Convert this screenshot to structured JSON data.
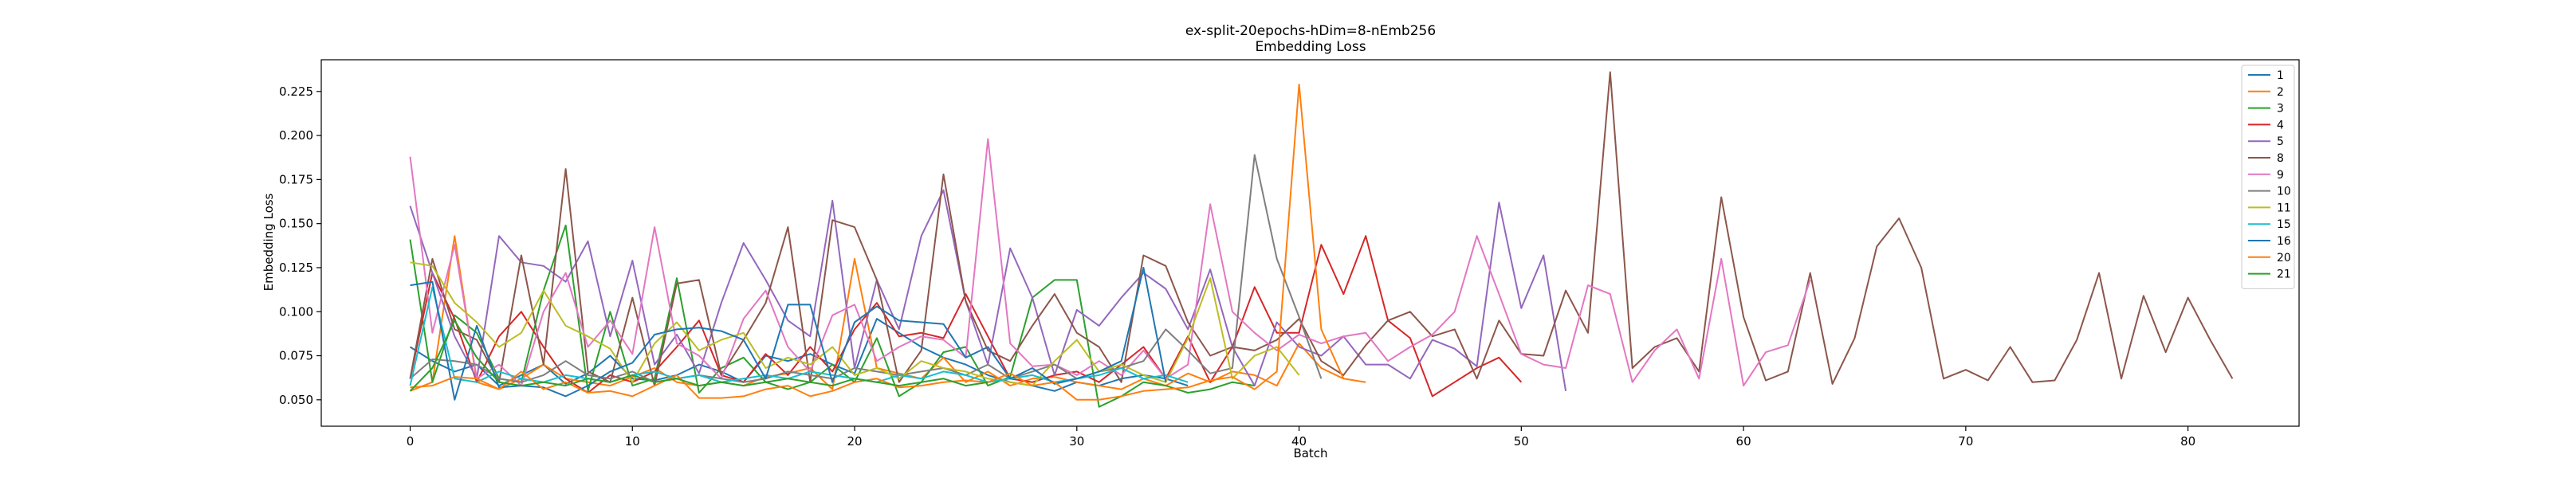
{
  "chart_data": {
    "type": "line",
    "title": "ex-split-20epochs-hDim=8-nEmb256",
    "subtitle": "Embedding Loss",
    "xlabel": "Batch",
    "ylabel": "Embedding Loss",
    "xlim": [
      -4,
      85
    ],
    "ylim": [
      0.035,
      0.243
    ],
    "xticks": [
      0,
      10,
      20,
      30,
      40,
      50,
      60,
      70,
      80
    ],
    "yticks": [
      0.05,
      0.075,
      0.1,
      0.125,
      0.15,
      0.175,
      0.2,
      0.225
    ],
    "ytick_labels": [
      "0.050",
      "0.075",
      "0.100",
      "0.125",
      "0.150",
      "0.175",
      "0.200",
      "0.225"
    ],
    "grid": false,
    "legend_position": "top-right",
    "series": [
      {
        "name": "1",
        "color": "#1f77b4",
        "values": [
          0.08,
          0.072,
          0.066,
          0.07,
          0.058,
          0.064,
          0.07,
          0.059,
          0.065,
          0.075,
          0.062,
          0.061,
          0.064,
          0.07,
          0.066,
          0.06,
          0.075,
          0.072,
          0.076,
          0.07,
          0.065,
          0.096,
          0.088,
          0.08,
          0.074,
          0.07,
          0.064,
          0.06,
          0.058,
          0.055,
          0.06,
          0.058,
          0.062,
          0.064,
          0.062,
          0.058
        ]
      },
      {
        "name": "2",
        "color": "#ff7f0e",
        "values": [
          0.055,
          0.06,
          0.143,
          0.06,
          0.056,
          0.062,
          0.07,
          0.062,
          0.06,
          0.058,
          0.063,
          0.068,
          0.06,
          0.058,
          0.06,
          0.058,
          0.063,
          0.065,
          0.068,
          0.056,
          0.13,
          0.068,
          0.065,
          0.062,
          0.074,
          0.06,
          0.066,
          0.058,
          0.062,
          0.063,
          0.06,
          0.058,
          0.056,
          0.062,
          0.058,
          0.065,
          0.06,
          0.066,
          0.064,
          0.058,
          0.082,
          0.068,
          0.062,
          0.06
        ]
      },
      {
        "name": "3",
        "color": "#2ca02c",
        "values": [
          0.141,
          0.06,
          0.098,
          0.088,
          0.062,
          0.06,
          0.112,
          0.149,
          0.055,
          0.1,
          0.058,
          0.062,
          0.119,
          0.054,
          0.068,
          0.074,
          0.06,
          0.056,
          0.06,
          0.07,
          0.06,
          0.085,
          0.052,
          0.06,
          0.077,
          0.08,
          0.058,
          0.063,
          0.108,
          0.118,
          0.118,
          0.046,
          0.052,
          0.06,
          0.058,
          0.054,
          0.056,
          0.06,
          0.058
        ]
      },
      {
        "name": "4",
        "color": "#d62728",
        "values": [
          0.062,
          0.122,
          0.096,
          0.06,
          0.086,
          0.1,
          0.08,
          0.062,
          0.054,
          0.064,
          0.06,
          0.066,
          0.08,
          0.095,
          0.064,
          0.06,
          0.076,
          0.064,
          0.08,
          0.066,
          0.09,
          0.105,
          0.086,
          0.088,
          0.085,
          0.11,
          0.086,
          0.062,
          0.06,
          0.064,
          0.066,
          0.06,
          0.07,
          0.08,
          0.062,
          0.086,
          0.06,
          0.08,
          0.114,
          0.088,
          0.088,
          0.138,
          0.11,
          0.143,
          0.095,
          0.085,
          0.052,
          0.06,
          0.068,
          0.074,
          0.06
        ]
      },
      {
        "name": "5",
        "color": "#9467bd",
        "values": [
          0.16,
          0.122,
          0.086,
          0.062,
          0.143,
          0.128,
          0.126,
          0.117,
          0.14,
          0.086,
          0.129,
          0.07,
          0.087,
          0.065,
          0.105,
          0.139,
          0.118,
          0.095,
          0.086,
          0.163,
          0.068,
          0.118,
          0.09,
          0.143,
          0.169,
          0.106,
          0.07,
          0.136,
          0.108,
          0.064,
          0.101,
          0.092,
          0.108,
          0.122,
          0.113,
          0.09,
          0.124,
          0.08,
          0.058,
          0.094,
          0.08,
          0.075,
          0.086,
          0.07,
          0.07,
          0.062,
          0.084,
          0.079,
          0.069,
          0.162,
          0.102,
          0.132,
          0.055
        ]
      },
      {
        "name": "8",
        "color": "#8c564b",
        "values": [
          0.062,
          0.13,
          0.09,
          0.084,
          0.06,
          0.132,
          0.07,
          0.181,
          0.066,
          0.06,
          0.108,
          0.058,
          0.116,
          0.118,
          0.064,
          0.084,
          0.105,
          0.148,
          0.06,
          0.152,
          0.148,
          0.118,
          0.06,
          0.078,
          0.178,
          0.106,
          0.078,
          0.072,
          0.092,
          0.11,
          0.088,
          0.08,
          0.06,
          0.132,
          0.126,
          0.094,
          0.075,
          0.08,
          0.078,
          0.084,
          0.096,
          0.072,
          0.064,
          0.081,
          0.095,
          0.1,
          0.086,
          0.09,
          0.062,
          0.095,
          0.076,
          0.075,
          0.112,
          0.088,
          0.236,
          0.068,
          0.08,
          0.085,
          0.066,
          0.165,
          0.097,
          0.061,
          0.066,
          0.122,
          0.059,
          0.085,
          0.137,
          0.153,
          0.125,
          0.062,
          0.067,
          0.061,
          0.08,
          0.06,
          0.061,
          0.084,
          0.122,
          0.062,
          0.109,
          0.077,
          0.108,
          0.084,
          0.062
        ]
      },
      {
        "name": "9",
        "color": "#e377c2",
        "values": [
          0.188,
          0.088,
          0.138,
          0.062,
          0.07,
          0.058,
          0.1,
          0.122,
          0.08,
          0.095,
          0.076,
          0.148,
          0.082,
          0.075,
          0.062,
          0.096,
          0.112,
          0.08,
          0.066,
          0.098,
          0.104,
          0.072,
          0.08,
          0.086,
          0.084,
          0.074,
          0.198,
          0.082,
          0.069,
          0.07,
          0.064,
          0.072,
          0.064,
          0.078,
          0.062,
          0.07,
          0.161,
          0.1,
          0.088,
          0.078,
          0.087,
          0.082,
          0.086,
          0.088,
          0.072,
          0.08,
          0.087,
          0.1,
          0.143,
          0.11,
          0.076,
          0.07,
          0.068,
          0.115,
          0.11,
          0.06,
          0.078,
          0.09,
          0.062,
          0.13,
          0.058,
          0.077,
          0.081,
          0.118
        ]
      },
      {
        "name": "10",
        "color": "#7f7f7f",
        "values": [
          0.062,
          0.073,
          0.072,
          0.07,
          0.062,
          0.06,
          0.064,
          0.072,
          0.064,
          0.062,
          0.066,
          0.06,
          0.062,
          0.064,
          0.062,
          0.06,
          0.062,
          0.066,
          0.064,
          0.062,
          0.068,
          0.066,
          0.064,
          0.066,
          0.068,
          0.064,
          0.07,
          0.062,
          0.066,
          0.07,
          0.062,
          0.066,
          0.068,
          0.072,
          0.09,
          0.078,
          0.065,
          0.068,
          0.189,
          0.13,
          0.097,
          0.062
        ]
      },
      {
        "name": "11",
        "color": "#bcbd22",
        "values": [
          0.128,
          0.126,
          0.105,
          0.094,
          0.08,
          0.088,
          0.112,
          0.092,
          0.086,
          0.079,
          0.06,
          0.082,
          0.094,
          0.078,
          0.084,
          0.088,
          0.068,
          0.074,
          0.07,
          0.08,
          0.064,
          0.068,
          0.062,
          0.072,
          0.068,
          0.066,
          0.062,
          0.06,
          0.058,
          0.072,
          0.084,
          0.066,
          0.07,
          0.064,
          0.06,
          0.085,
          0.119,
          0.062,
          0.075,
          0.08,
          0.064
        ]
      },
      {
        "name": "15",
        "color": "#17becf",
        "values": [
          0.058,
          0.114,
          0.062,
          0.06,
          0.066,
          0.062,
          0.06,
          0.064,
          0.062,
          0.06,
          0.064,
          0.066,
          0.062,
          0.064,
          0.06,
          0.062,
          0.064,
          0.062,
          0.066,
          0.064,
          0.062,
          0.06,
          0.064,
          0.062,
          0.066,
          0.064,
          0.06,
          0.062,
          0.064,
          0.06,
          0.062,
          0.064,
          0.068,
          0.062,
          0.064,
          0.06
        ]
      },
      {
        "name": "16",
        "color": "#1f77b4",
        "values": [
          0.115,
          0.117,
          0.05,
          0.092,
          0.057,
          0.058,
          0.057,
          0.052,
          0.058,
          0.066,
          0.071,
          0.087,
          0.09,
          0.091,
          0.089,
          0.084,
          0.062,
          0.104,
          0.104,
          0.06,
          0.094,
          0.103,
          0.095,
          0.094,
          0.093,
          0.074,
          0.08,
          0.062,
          0.068,
          0.059,
          0.062,
          0.066,
          0.072,
          0.125,
          0.06
        ]
      },
      {
        "name": "20",
        "color": "#ff7f0e",
        "values": [
          0.057,
          0.058,
          0.063,
          0.062,
          0.056,
          0.066,
          0.056,
          0.06,
          0.054,
          0.055,
          0.052,
          0.058,
          0.064,
          0.051,
          0.051,
          0.052,
          0.056,
          0.058,
          0.052,
          0.055,
          0.06,
          0.062,
          0.057,
          0.058,
          0.06,
          0.061,
          0.06,
          0.065,
          0.058,
          0.06,
          0.05,
          0.05,
          0.052,
          0.055,
          0.056,
          0.057,
          0.061,
          0.063,
          0.056,
          0.066,
          0.229,
          0.09,
          0.062
        ]
      },
      {
        "name": "21",
        "color": "#2ca02c",
        "values": [
          0.055,
          0.068,
          0.095,
          0.074,
          0.06,
          0.058,
          0.06,
          0.058,
          0.062,
          0.06,
          0.064,
          0.06,
          0.062,
          0.058,
          0.06,
          0.058,
          0.06,
          0.062,
          0.06,
          0.058,
          0.062,
          0.06,
          0.058,
          0.06,
          0.062,
          0.058,
          0.06
        ]
      }
    ]
  }
}
